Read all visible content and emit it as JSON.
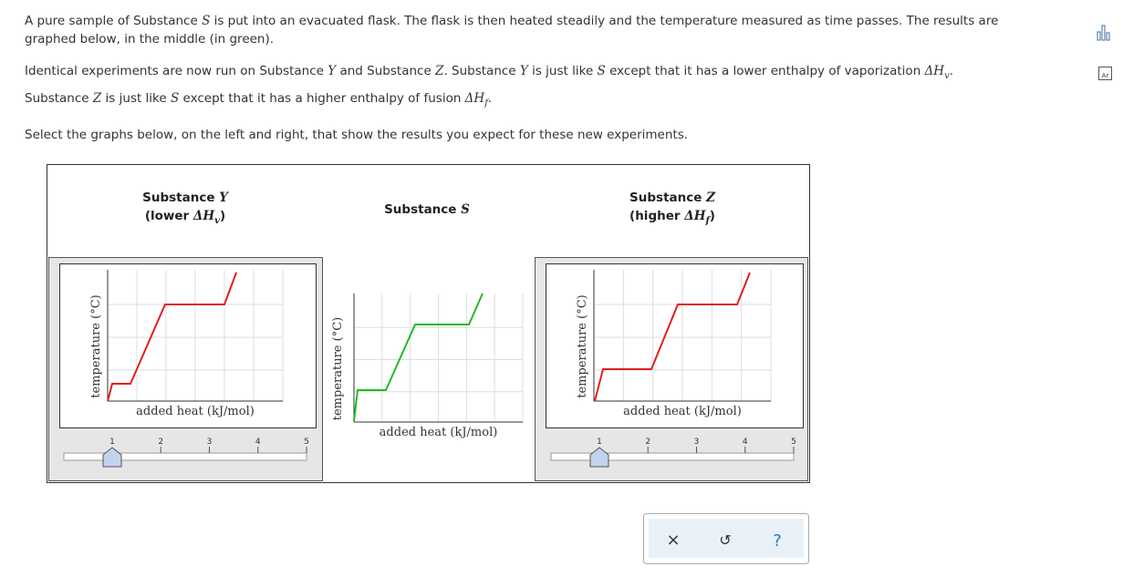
{
  "question": {
    "p1": [
      "A pure sample of Substance ",
      "S",
      " is put into an evacuated flask. The flask is then heated steadily and the temperature measured as time passes. The results are",
      "graphed below, in the middle (in green)."
    ],
    "p2": [
      "Identical experiments are now run on Substance ",
      "Y",
      " and Substance ",
      "Z",
      ". Substance ",
      "Y",
      " is just like ",
      "S",
      " except that it has a lower enthalpy of vaporization ",
      "ΔH",
      "v",
      "."
    ],
    "p3": [
      "Substance ",
      "Z",
      " is just like ",
      "S",
      " except that it has a higher enthalpy of fusion ",
      "ΔH",
      "f",
      "."
    ],
    "p4": "Select the graphs below, on the left and right, that show the results you expect for these new experiments."
  },
  "panels": [
    {
      "title": [
        "Substance ",
        "Y"
      ],
      "subtitle": [
        "(lower ",
        "ΔH",
        "v",
        ")"
      ],
      "y_axis_label": "temperature (°C)",
      "x_axis_label": "added heat (kJ/mol)",
      "slider_ticks": [
        "1",
        "2",
        "3",
        "4",
        "5"
      ]
    },
    {
      "title": [
        "Substance ",
        "S"
      ],
      "y_axis_label": "temperature (°C)",
      "x_axis_label": "added heat (kJ/mol)"
    },
    {
      "title": [
        "Substance ",
        "Z"
      ],
      "subtitle": [
        "(higher ",
        "ΔH",
        "f",
        ")"
      ],
      "y_axis_label": "temperature (°C)",
      "x_axis_label": "added heat (kJ/mol)",
      "slider_ticks": [
        "1",
        "2",
        "3",
        "4",
        "5"
      ]
    }
  ],
  "toolbar": {
    "buttons": [
      "×",
      "↺",
      "?"
    ]
  },
  "sidebar": {
    "periodic_table_icon": "Ar"
  }
}
